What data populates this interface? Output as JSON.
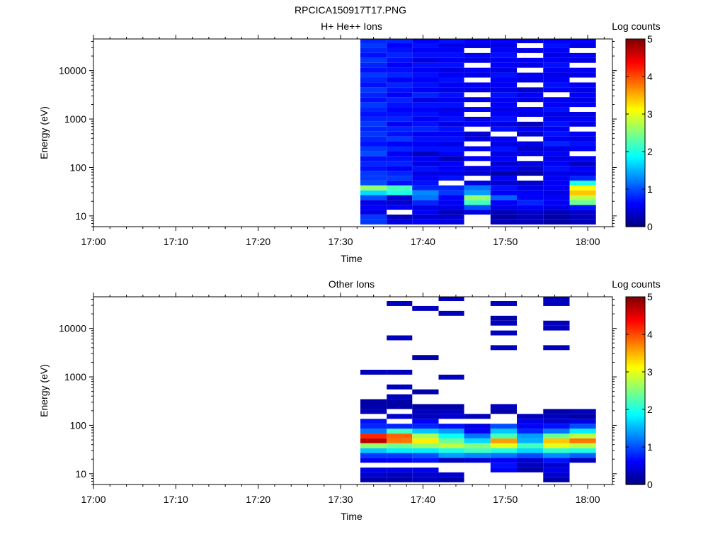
{
  "figure_title": "RPCICA150917T17.PNG",
  "chart_data": [
    {
      "type": "heatmap",
      "title": "H+ He++ Ions",
      "xlabel": "Time",
      "ylabel": "Energy (eV)",
      "x_ticks": [
        "17:00",
        "17:10",
        "17:20",
        "17:30",
        "17:40",
        "17:50",
        "18:00"
      ],
      "y_ticks": [
        "10",
        "100",
        "1000",
        "10000"
      ],
      "y_scale": "log",
      "ylim": [
        6,
        45000
      ],
      "xlim_minutes": [
        0,
        63
      ],
      "colorbar": {
        "label": "Log counts",
        "ticks": [
          "0",
          "1",
          "2",
          "3",
          "4",
          "5"
        ],
        "range": [
          0,
          5
        ],
        "colormap": "jet"
      },
      "time_bins_minutes": [
        [
          32.4,
          35.6
        ],
        [
          35.6,
          38.7
        ],
        [
          38.7,
          41.9
        ],
        [
          41.9,
          45.0
        ],
        [
          45.0,
          48.2
        ],
        [
          48.2,
          51.4
        ],
        [
          51.4,
          54.6
        ],
        [
          54.6,
          57.8
        ],
        [
          57.8,
          61.0
        ]
      ],
      "energy_bins_ev": [
        7.5,
        9.5,
        12,
        15,
        19,
        24,
        30,
        38,
        48,
        60,
        76,
        96,
        121,
        153,
        193,
        244,
        308,
        389,
        491,
        620,
        783,
        989,
        1249,
        1577,
        1991,
        2514,
        3174,
        4008,
        5061,
        6390,
        8069,
        10188,
        12865,
        16244,
        20511,
        25899,
        32702,
        41292
      ],
      "log_counts": [
        [
          0.9,
          0.5,
          0.6,
          0.5,
          null,
          0.3,
          0.3,
          0.2,
          0.3
        ],
        [
          0.9,
          0.3,
          0.4,
          0.4,
          null,
          0.2,
          0.3,
          0.2,
          0.3
        ],
        [
          0.5,
          null,
          0.6,
          0.3,
          0.5,
          0.3,
          0.4,
          0.3,
          0.4
        ],
        [
          0.6,
          0.6,
          0.5,
          0.5,
          1.0,
          0.5,
          0.6,
          0.5,
          0.7
        ],
        [
          0.5,
          0.4,
          0.8,
          0.6,
          2.2,
          0.6,
          0.8,
          0.6,
          2.4
        ],
        [
          1.0,
          0.4,
          1.2,
          0.6,
          2.6,
          1.1,
          0.6,
          0.6,
          2.8
        ],
        [
          1.7,
          2.0,
          1.3,
          0.9,
          1.4,
          0.6,
          0.6,
          0.5,
          3.4
        ],
        [
          2.6,
          2.2,
          0.8,
          0.8,
          1.2,
          0.7,
          0.5,
          0.6,
          3.1
        ],
        [
          1.0,
          0.7,
          0.7,
          null,
          0.5,
          0.4,
          0.4,
          0.6,
          2.0
        ],
        [
          0.9,
          0.9,
          0.6,
          0.7,
          null,
          0.6,
          null,
          0.6,
          0.8
        ],
        [
          0.9,
          0.8,
          0.5,
          0.5,
          0.4,
          0.2,
          0.2,
          0.5,
          0.5
        ],
        [
          0.7,
          0.6,
          0.7,
          0.6,
          0.5,
          0.6,
          0.4,
          0.7,
          0.6
        ],
        [
          0.8,
          0.8,
          0.5,
          0.6,
          null,
          0.4,
          0.5,
          0.6,
          0.3
        ],
        [
          0.7,
          0.7,
          0.6,
          0.3,
          0.6,
          0.6,
          null,
          0.5,
          0.6
        ],
        [
          1.0,
          0.6,
          0.3,
          0.6,
          null,
          0.5,
          0.5,
          0.6,
          null
        ],
        [
          0.9,
          0.8,
          0.7,
          0.7,
          0.6,
          0.7,
          0.4,
          0.5,
          0.6
        ],
        [
          0.7,
          0.6,
          0.6,
          0.5,
          null,
          0.5,
          0.5,
          0.8,
          0.7
        ],
        [
          0.8,
          0.9,
          0.7,
          0.7,
          0.5,
          0.6,
          null,
          0.6,
          0.5
        ],
        [
          0.9,
          0.7,
          0.6,
          0.6,
          0.4,
          null,
          0.4,
          0.7,
          0.6
        ],
        [
          0.8,
          0.8,
          0.8,
          0.7,
          null,
          0.7,
          0.6,
          0.6,
          null
        ],
        [
          0.9,
          0.6,
          0.7,
          0.5,
          0.6,
          0.5,
          0.3,
          0.7,
          0.5
        ],
        [
          0.8,
          0.8,
          0.6,
          0.7,
          0.5,
          0.7,
          null,
          0.6,
          0.6
        ],
        [
          0.7,
          0.7,
          0.7,
          0.6,
          null,
          0.6,
          0.5,
          0.5,
          0.5
        ],
        [
          0.8,
          0.6,
          0.6,
          0.5,
          0.6,
          0.5,
          0.6,
          0.7,
          null
        ],
        [
          0.9,
          0.7,
          0.7,
          0.7,
          null,
          0.6,
          null,
          0.6,
          0.6
        ],
        [
          0.7,
          0.8,
          0.5,
          0.6,
          0.5,
          0.6,
          0.5,
          0.6,
          0.5
        ],
        [
          0.8,
          0.6,
          0.8,
          0.7,
          null,
          0.7,
          0.6,
          null,
          0.6
        ],
        [
          0.9,
          0.7,
          0.6,
          0.5,
          0.5,
          0.5,
          0.4,
          0.6,
          0.5
        ],
        [
          0.7,
          0.8,
          0.7,
          0.6,
          0.6,
          0.6,
          null,
          0.7,
          0.6
        ],
        [
          0.8,
          0.6,
          0.6,
          0.7,
          null,
          0.6,
          0.5,
          0.6,
          null
        ],
        [
          0.9,
          0.8,
          0.7,
          0.6,
          0.5,
          0.7,
          0.6,
          0.5,
          0.5
        ],
        [
          0.7,
          0.7,
          0.6,
          0.5,
          0.6,
          0.5,
          null,
          0.6,
          0.6
        ],
        [
          0.8,
          0.6,
          0.7,
          0.7,
          null,
          0.6,
          0.5,
          0.7,
          null
        ],
        [
          0.9,
          0.7,
          0.5,
          0.6,
          0.5,
          0.6,
          0.6,
          0.6,
          0.5
        ],
        [
          0.7,
          0.8,
          0.7,
          0.7,
          0.6,
          0.7,
          null,
          0.5,
          0.6
        ],
        [
          0.8,
          0.7,
          0.6,
          0.6,
          null,
          0.6,
          0.5,
          0.6,
          null
        ],
        [
          0.9,
          0.6,
          0.7,
          0.5,
          0.5,
          0.5,
          null,
          0.7,
          0.5
        ],
        [
          0.8,
          0.8,
          0.6,
          0.7,
          0.6,
          0.6,
          0.5,
          0.6,
          0.6
        ]
      ]
    },
    {
      "type": "heatmap",
      "title": "Other Ions",
      "xlabel": "Time",
      "ylabel": "Energy (eV)",
      "x_ticks": [
        "17:00",
        "17:10",
        "17:20",
        "17:30",
        "17:40",
        "17:50",
        "18:00"
      ],
      "y_ticks": [
        "10",
        "100",
        "1000",
        "10000"
      ],
      "y_scale": "log",
      "ylim": [
        6,
        45000
      ],
      "xlim_minutes": [
        0,
        63
      ],
      "colorbar": {
        "label": "Log counts",
        "ticks": [
          "0",
          "1",
          "2",
          "3",
          "4",
          "5"
        ],
        "range": [
          0,
          5
        ],
        "colormap": "jet"
      },
      "time_bins_minutes": [
        [
          32.4,
          35.6
        ],
        [
          35.6,
          38.7
        ],
        [
          38.7,
          41.9
        ],
        [
          41.9,
          45.0
        ],
        [
          45.0,
          48.2
        ],
        [
          48.2,
          51.4
        ],
        [
          51.4,
          54.6
        ],
        [
          54.6,
          57.8
        ],
        [
          57.8,
          61.0
        ]
      ],
      "energy_bins_ev": [
        7.5,
        9.5,
        12,
        15,
        19,
        24,
        30,
        38,
        48,
        60,
        76,
        96,
        121,
        153,
        193,
        244,
        308,
        389,
        491,
        620,
        783,
        989,
        1249,
        1577,
        1991,
        2514,
        3174,
        4008,
        5061,
        6390,
        8069,
        10188,
        12865,
        16244,
        20511,
        25899,
        32702,
        41292
      ],
      "log_counts": [
        [
          0.2,
          0.2,
          0.3,
          0.2,
          null,
          null,
          null,
          0.2,
          null
        ],
        [
          0.4,
          0.3,
          0.4,
          0.4,
          null,
          null,
          null,
          0.4,
          null
        ],
        [
          0.5,
          0.5,
          0.5,
          null,
          null,
          0.6,
          0.2,
          0.5,
          null
        ],
        [
          null,
          null,
          null,
          null,
          null,
          0.7,
          0.3,
          0.4,
          null
        ],
        [
          0.6,
          0.6,
          0.7,
          0.3,
          0.4,
          0.6,
          0.4,
          0.7,
          0.3
        ],
        [
          0.9,
          0.9,
          1.0,
          1.4,
          1.3,
          1.2,
          1.0,
          1.3,
          1.1
        ],
        [
          1.6,
          1.8,
          1.8,
          2.0,
          2.2,
          2.0,
          1.7,
          2.1,
          2.0
        ],
        [
          2.6,
          2.4,
          2.6,
          2.8,
          2.5,
          3.0,
          2.2,
          3.0,
          2.8
        ],
        [
          4.7,
          3.8,
          3.2,
          2.4,
          1.7,
          3.6,
          1.5,
          3.4,
          3.8
        ],
        [
          4.2,
          3.9,
          2.7,
          1.9,
          1.2,
          2.2,
          1.4,
          2.4,
          2.8
        ],
        [
          1.2,
          2.2,
          1.6,
          1.4,
          0.6,
          1.6,
          0.8,
          1.2,
          1.8
        ],
        [
          0.8,
          0.8,
          0.8,
          0.7,
          0.5,
          1.0,
          0.6,
          0.7,
          1.0
        ],
        [
          0.7,
          null,
          0.6,
          null,
          null,
          null,
          0.5,
          0.4,
          0.5
        ],
        [
          null,
          0.4,
          0.3,
          0.4,
          0.3,
          null,
          0.3,
          0.3,
          0.2
        ],
        [
          0.3,
          null,
          0.3,
          0.3,
          null,
          0.2,
          null,
          0.2,
          0.3
        ],
        [
          0.2,
          0.2,
          0.2,
          0.2,
          null,
          0.3,
          null,
          null,
          null
        ],
        [
          0.2,
          0.2,
          null,
          null,
          null,
          null,
          null,
          null,
          null
        ],
        [
          null,
          0.3,
          null,
          null,
          null,
          null,
          null,
          null,
          null
        ],
        [
          null,
          null,
          0.2,
          null,
          null,
          null,
          null,
          null,
          null
        ],
        [
          null,
          0.3,
          null,
          null,
          null,
          null,
          null,
          null,
          null
        ],
        [
          null,
          null,
          null,
          null,
          null,
          null,
          null,
          null,
          null
        ],
        [
          null,
          null,
          null,
          0.3,
          null,
          null,
          null,
          null,
          null
        ],
        [
          0.3,
          0.3,
          null,
          null,
          null,
          null,
          null,
          null,
          null
        ],
        [
          null,
          null,
          null,
          null,
          null,
          null,
          null,
          null,
          null
        ],
        [
          null,
          null,
          null,
          null,
          null,
          null,
          null,
          null,
          null
        ],
        [
          null,
          null,
          0.2,
          null,
          null,
          null,
          null,
          null,
          null
        ],
        [
          null,
          null,
          null,
          null,
          null,
          null,
          null,
          null,
          null
        ],
        [
          null,
          null,
          null,
          null,
          null,
          0.3,
          null,
          0.3,
          null
        ],
        [
          null,
          null,
          null,
          null,
          null,
          null,
          null,
          null,
          null
        ],
        [
          null,
          0.3,
          null,
          null,
          null,
          null,
          null,
          null,
          null
        ],
        [
          null,
          null,
          null,
          null,
          null,
          0.3,
          null,
          null,
          null
        ],
        [
          null,
          null,
          null,
          null,
          null,
          null,
          null,
          0.3,
          null
        ],
        [
          null,
          null,
          null,
          null,
          null,
          0.3,
          null,
          0.3,
          null
        ],
        [
          null,
          null,
          null,
          null,
          null,
          0.2,
          null,
          null,
          null
        ],
        [
          null,
          null,
          null,
          0.3,
          null,
          null,
          null,
          null,
          null
        ],
        [
          null,
          null,
          0.3,
          null,
          null,
          null,
          null,
          null,
          null
        ],
        [
          null,
          0.3,
          null,
          null,
          null,
          0.3,
          null,
          0.3,
          null
        ],
        [
          null,
          null,
          null,
          0.3,
          null,
          null,
          null,
          0.3,
          null
        ]
      ]
    }
  ]
}
